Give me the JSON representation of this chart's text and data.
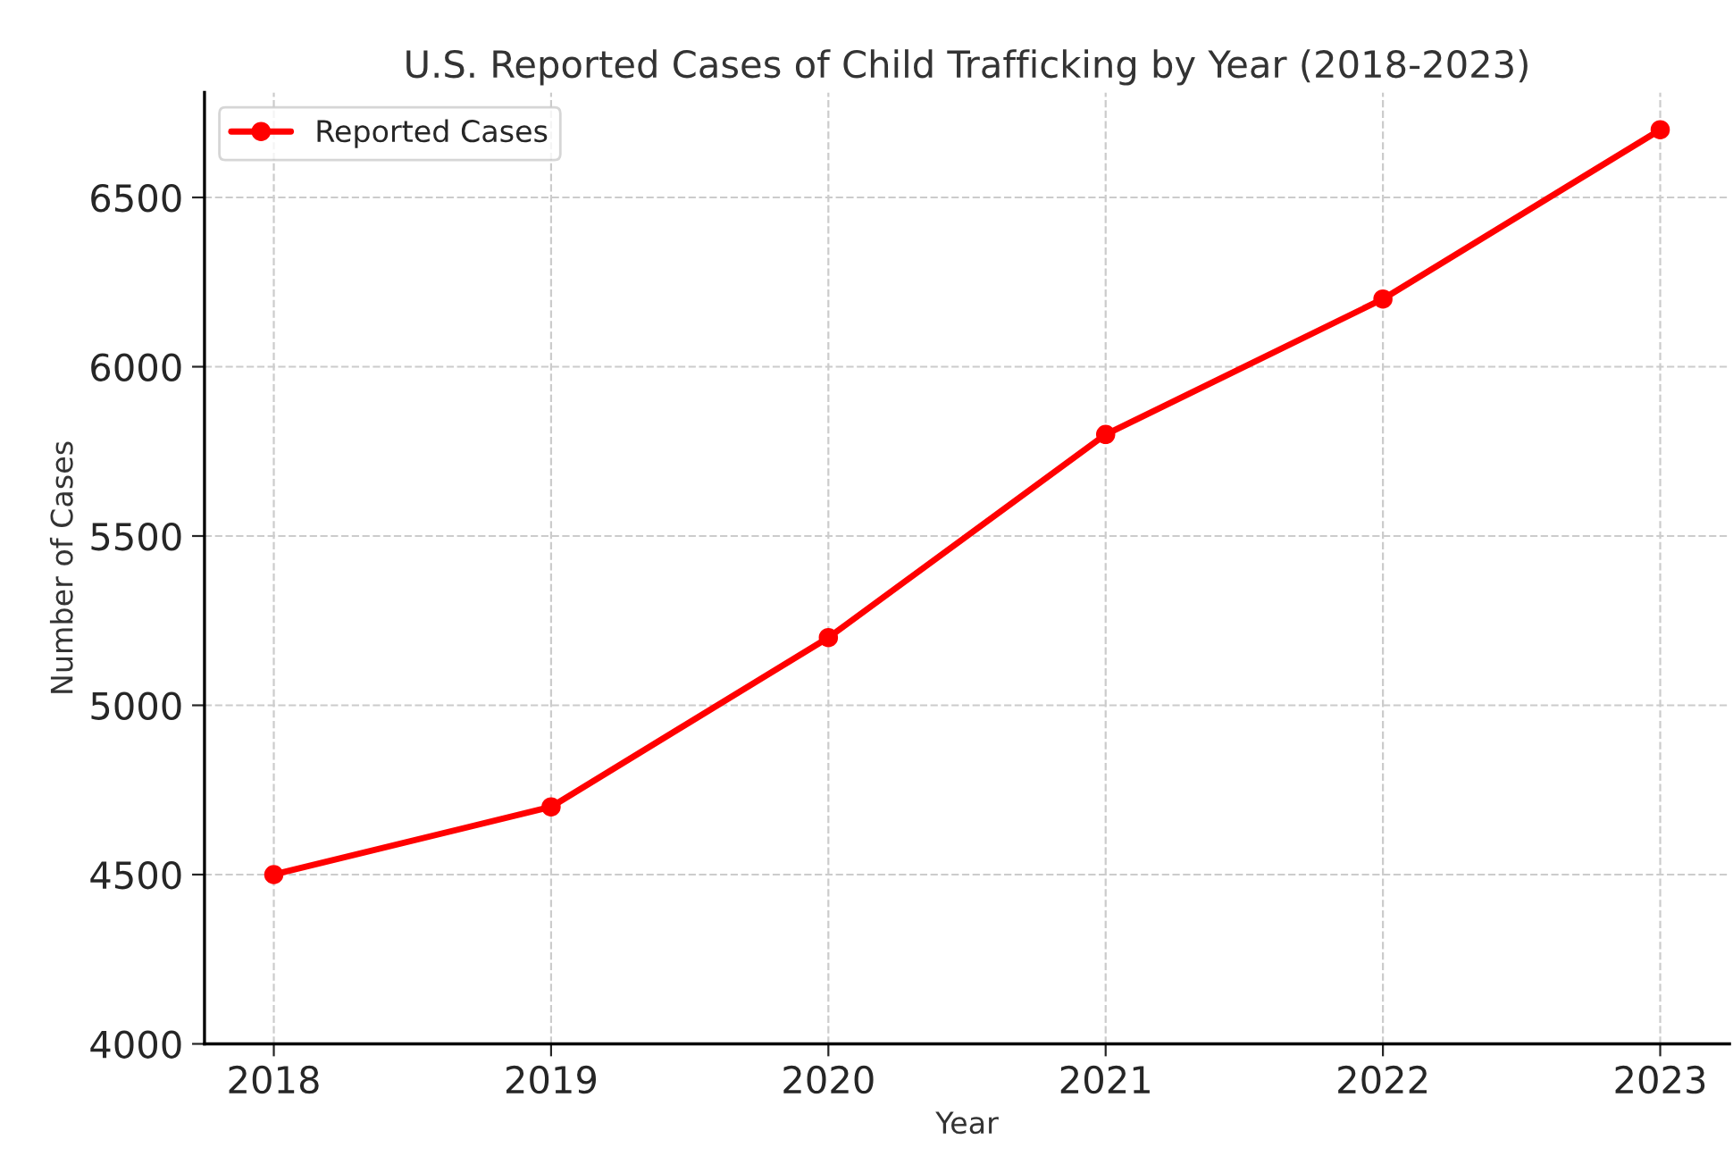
{
  "chart_data": {
    "type": "line",
    "title": "U.S. Reported Cases of Child Trafficking by Year (2018-2023)",
    "xlabel": "Year",
    "ylabel": "Number of Cases",
    "x": [
      2018,
      2019,
      2020,
      2021,
      2022,
      2023
    ],
    "series": [
      {
        "name": "Reported Cases",
        "color": "#ff0000",
        "values": [
          4500,
          4700,
          5200,
          5800,
          6200,
          6700
        ]
      }
    ],
    "xlim": [
      2017.75,
      2023.25
    ],
    "xticks": [
      2018,
      2019,
      2020,
      2021,
      2022,
      2023
    ],
    "ylim": [
      4000,
      6810
    ],
    "yticks": [
      4000,
      4500,
      5000,
      5500,
      6000,
      6500
    ],
    "grid": true,
    "legend": "top left",
    "marker": "circle",
    "line_style": "solid"
  }
}
